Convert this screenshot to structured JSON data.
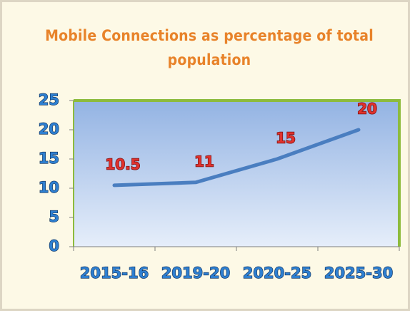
{
  "chart_data": {
    "type": "line",
    "title": "Mobile Connections as percentage of total population",
    "categories": [
      "2015-16",
      "2019-20",
      "2020-25",
      "2025-30"
    ],
    "values": [
      10.5,
      11,
      15,
      20
    ],
    "color": "#4a7ec0",
    "ylim": [
      0,
      25
    ],
    "yticks": [
      0,
      5,
      10,
      15,
      20,
      25
    ]
  }
}
